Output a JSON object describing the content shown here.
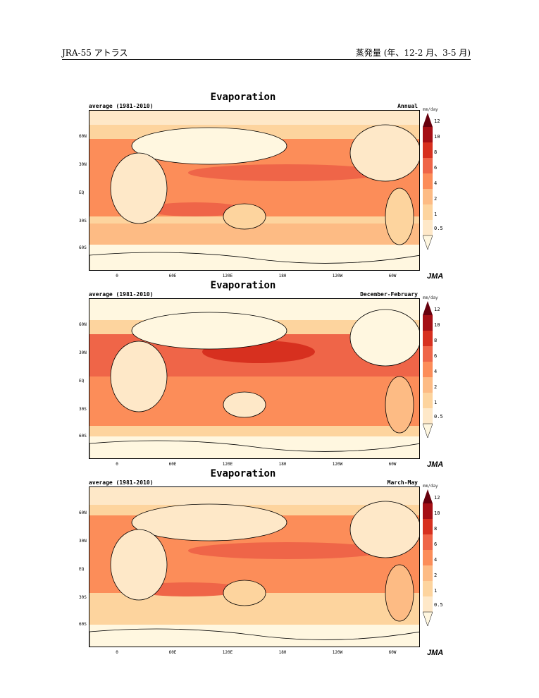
{
  "header": {
    "left": "JRA-55 アトラス",
    "right": "蒸発量 (年、12-2 月、3-5 月)"
  },
  "panels": [
    {
      "title": "Evaporation",
      "subtitle_left": "average (1981-2010)",
      "subtitle_right": "Annual"
    },
    {
      "title": "Evaporation",
      "subtitle_left": "average (1981-2010)",
      "subtitle_right": "December-February"
    },
    {
      "title": "Evaporation",
      "subtitle_left": "average (1981-2010)",
      "subtitle_right": "March-May"
    }
  ],
  "axes": {
    "lat_labels": [
      "60N",
      "30N",
      "EQ",
      "30S",
      "60S"
    ],
    "lon_labels": [
      "0",
      "60E",
      "120E",
      "180",
      "120W",
      "60W"
    ]
  },
  "colorbar": {
    "units": "mm/day",
    "ticks": [
      "12",
      "10",
      "8",
      "6",
      "4",
      "2",
      "1",
      "0.5"
    ],
    "colors": [
      "#67000d",
      "#a50f15",
      "#d7301f",
      "#ef6548",
      "#fc8d59",
      "#fdbb84",
      "#fdd49e",
      "#fee8c8",
      "#fff7e0"
    ]
  },
  "logo": "JMA"
}
